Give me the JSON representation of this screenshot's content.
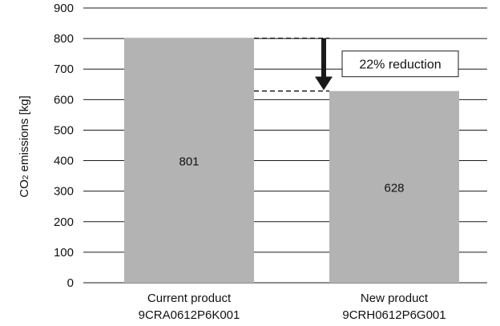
{
  "chart_data": {
    "type": "bar",
    "title": "",
    "xlabel": "",
    "ylabel_main": "CO",
    "ylabel_sub": "2",
    "ylabel_rest": " emissions [kg]",
    "ylim": [
      0,
      900
    ],
    "yticks": [
      0,
      100,
      200,
      300,
      400,
      500,
      600,
      700,
      800,
      900
    ],
    "grid": true,
    "categories": [
      {
        "line1": "Current product",
        "line2": "9CRA0612P6K001"
      },
      {
        "line1": "New product",
        "line2": "9CRH0612P6G001"
      }
    ],
    "values": [
      801,
      628
    ],
    "value_labels": [
      "801",
      "628"
    ],
    "annotation": {
      "text": "22% reduction",
      "from_value": 801,
      "to_value": 628
    },
    "colors": {
      "bar": "#b3b3b4",
      "grid": "#1a1a1a",
      "text": "#111111",
      "arrow": "#1a1a1a"
    }
  }
}
